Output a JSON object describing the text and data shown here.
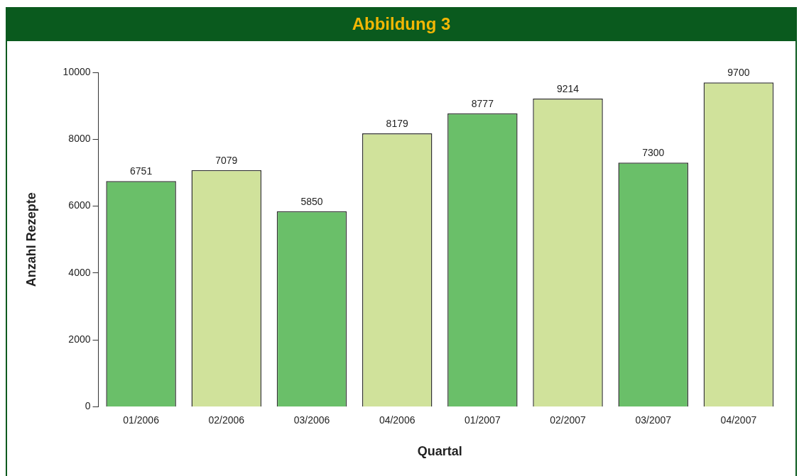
{
  "chart_data": {
    "type": "bar",
    "title": "Abbildung 3",
    "xlabel": "Quartal",
    "ylabel": "Anzahl Rezepte",
    "categories": [
      "01/2006",
      "02/2006",
      "03/2006",
      "04/2006",
      "01/2007",
      "02/2007",
      "03/2007",
      "04/2007"
    ],
    "values": [
      6751,
      7079,
      5850,
      8179,
      8777,
      9214,
      7300,
      9700
    ],
    "colors": [
      "#6abf69",
      "#d0e29b",
      "#6abf69",
      "#d0e29b",
      "#6abf69",
      "#d0e29b",
      "#6abf69",
      "#d0e29b"
    ],
    "ylim": [
      0,
      10000
    ],
    "yticks": [
      0,
      2000,
      4000,
      6000,
      8000,
      10000
    ],
    "grid": false,
    "legend": false,
    "data_labels": true
  }
}
